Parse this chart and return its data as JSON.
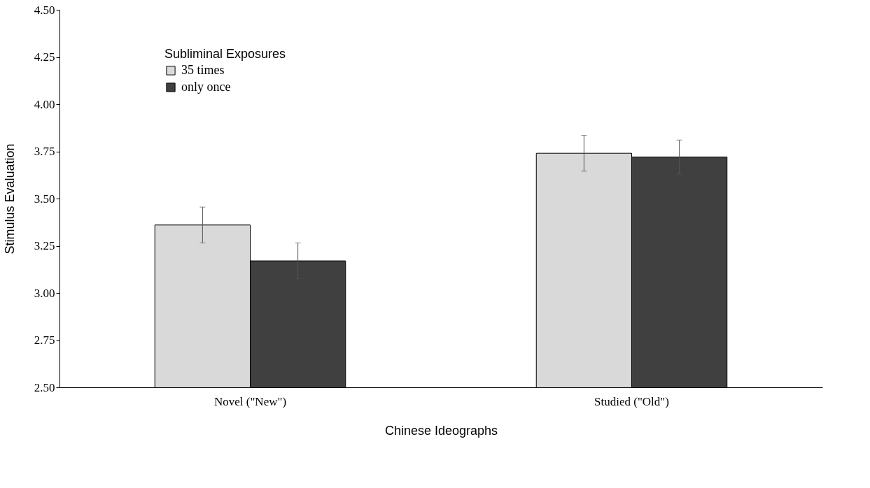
{
  "chart_data": {
    "type": "bar",
    "xlabel": "Chinese Ideographs",
    "ylabel": "Stimulus Evaluation",
    "legend_title": "Subliminal Exposures",
    "legend": "top left",
    "grid": false,
    "categories": [
      "Novel (\"New\")",
      "Studied (\"Old\")"
    ],
    "series": [
      {
        "name": "35 times",
        "color": "#d9d9d9",
        "values": [
          3.36,
          3.74
        ],
        "errors": [
          0.095,
          0.095
        ]
      },
      {
        "name": "only once",
        "color": "#404040",
        "values": [
          3.17,
          3.72
        ],
        "errors": [
          0.095,
          0.09
        ]
      }
    ],
    "ylim": [
      2.5,
      4.5
    ],
    "yticks": [
      {
        "value": 2.5,
        "label": "2.50"
      },
      {
        "value": 2.75,
        "label": "2.75"
      },
      {
        "value": 3.0,
        "label": "3.00"
      },
      {
        "value": 3.25,
        "label": "3.25"
      },
      {
        "value": 3.5,
        "label": "3.50"
      },
      {
        "value": 3.75,
        "label": "3.75"
      },
      {
        "value": 4.0,
        "label": "4.00"
      },
      {
        "value": 4.25,
        "label": "4.25"
      },
      {
        "value": 4.5,
        "label": "4.50"
      }
    ]
  }
}
